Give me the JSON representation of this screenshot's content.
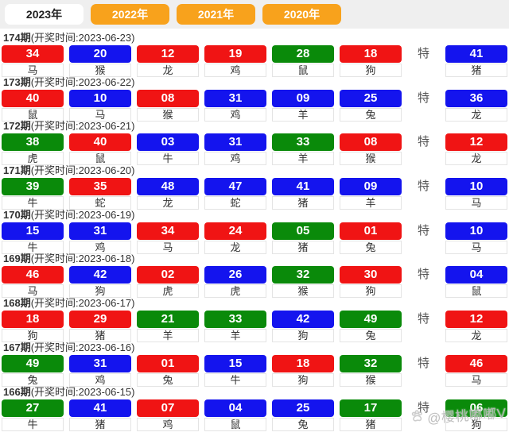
{
  "tab_bar": {
    "tabs": [
      {
        "label": "2023年",
        "active": true
      },
      {
        "label": "2022年",
        "active": false
      },
      {
        "label": "2021年",
        "active": false
      },
      {
        "label": "2020年",
        "active": false
      }
    ]
  },
  "special_marker": "特",
  "colors": {
    "red": "#f01414",
    "blue": "#1414ee",
    "green": "#0a8a0a",
    "orange": "#f8a21c"
  },
  "draws": [
    {
      "period": "174期",
      "time": "(开奖时间:2023-06-23)",
      "numbers": [
        {
          "value": "34",
          "color": "red",
          "zodiac": "马"
        },
        {
          "value": "20",
          "color": "blue",
          "zodiac": "猴"
        },
        {
          "value": "12",
          "color": "red",
          "zodiac": "龙"
        },
        {
          "value": "19",
          "color": "red",
          "zodiac": "鸡"
        },
        {
          "value": "28",
          "color": "green",
          "zodiac": "鼠"
        },
        {
          "value": "18",
          "color": "red",
          "zodiac": "狗"
        }
      ],
      "special": {
        "value": "41",
        "color": "blue",
        "zodiac": "猪"
      }
    },
    {
      "period": "173期",
      "time": "(开奖时间:2023-06-22)",
      "numbers": [
        {
          "value": "40",
          "color": "red",
          "zodiac": "鼠"
        },
        {
          "value": "10",
          "color": "blue",
          "zodiac": "马"
        },
        {
          "value": "08",
          "color": "red",
          "zodiac": "猴"
        },
        {
          "value": "31",
          "color": "blue",
          "zodiac": "鸡"
        },
        {
          "value": "09",
          "color": "blue",
          "zodiac": "羊"
        },
        {
          "value": "25",
          "color": "blue",
          "zodiac": "兔"
        }
      ],
      "special": {
        "value": "36",
        "color": "blue",
        "zodiac": "龙"
      }
    },
    {
      "period": "172期",
      "time": "(开奖时间:2023-06-21)",
      "numbers": [
        {
          "value": "38",
          "color": "green",
          "zodiac": "虎"
        },
        {
          "value": "40",
          "color": "red",
          "zodiac": "鼠"
        },
        {
          "value": "03",
          "color": "blue",
          "zodiac": "牛"
        },
        {
          "value": "31",
          "color": "blue",
          "zodiac": "鸡"
        },
        {
          "value": "33",
          "color": "green",
          "zodiac": "羊"
        },
        {
          "value": "08",
          "color": "red",
          "zodiac": "猴"
        }
      ],
      "special": {
        "value": "12",
        "color": "red",
        "zodiac": "龙"
      }
    },
    {
      "period": "171期",
      "time": "(开奖时间:2023-06-20)",
      "numbers": [
        {
          "value": "39",
          "color": "green",
          "zodiac": "牛"
        },
        {
          "value": "35",
          "color": "red",
          "zodiac": "蛇"
        },
        {
          "value": "48",
          "color": "blue",
          "zodiac": "龙"
        },
        {
          "value": "47",
          "color": "blue",
          "zodiac": "蛇"
        },
        {
          "value": "41",
          "color": "blue",
          "zodiac": "猪"
        },
        {
          "value": "09",
          "color": "blue",
          "zodiac": "羊"
        }
      ],
      "special": {
        "value": "10",
        "color": "blue",
        "zodiac": "马"
      }
    },
    {
      "period": "170期",
      "time": "(开奖时间:2023-06-19)",
      "numbers": [
        {
          "value": "15",
          "color": "blue",
          "zodiac": "牛"
        },
        {
          "value": "31",
          "color": "blue",
          "zodiac": "鸡"
        },
        {
          "value": "34",
          "color": "red",
          "zodiac": "马"
        },
        {
          "value": "24",
          "color": "red",
          "zodiac": "龙"
        },
        {
          "value": "05",
          "color": "green",
          "zodiac": "猪"
        },
        {
          "value": "01",
          "color": "red",
          "zodiac": "兔"
        }
      ],
      "special": {
        "value": "10",
        "color": "blue",
        "zodiac": "马"
      }
    },
    {
      "period": "169期",
      "time": "(开奖时间:2023-06-18)",
      "numbers": [
        {
          "value": "46",
          "color": "red",
          "zodiac": "马"
        },
        {
          "value": "42",
          "color": "blue",
          "zodiac": "狗"
        },
        {
          "value": "02",
          "color": "red",
          "zodiac": "虎"
        },
        {
          "value": "26",
          "color": "blue",
          "zodiac": "虎"
        },
        {
          "value": "32",
          "color": "green",
          "zodiac": "猴"
        },
        {
          "value": "30",
          "color": "red",
          "zodiac": "狗"
        }
      ],
      "special": {
        "value": "04",
        "color": "blue",
        "zodiac": "鼠"
      }
    },
    {
      "period": "168期",
      "time": "(开奖时间:2023-06-17)",
      "numbers": [
        {
          "value": "18",
          "color": "red",
          "zodiac": "狗"
        },
        {
          "value": "29",
          "color": "red",
          "zodiac": "猪"
        },
        {
          "value": "21",
          "color": "green",
          "zodiac": "羊"
        },
        {
          "value": "33",
          "color": "green",
          "zodiac": "羊"
        },
        {
          "value": "42",
          "color": "blue",
          "zodiac": "狗"
        },
        {
          "value": "49",
          "color": "green",
          "zodiac": "兔"
        }
      ],
      "special": {
        "value": "12",
        "color": "red",
        "zodiac": "龙"
      }
    },
    {
      "period": "167期",
      "time": "(开奖时间:2023-06-16)",
      "numbers": [
        {
          "value": "49",
          "color": "green",
          "zodiac": "兔"
        },
        {
          "value": "31",
          "color": "blue",
          "zodiac": "鸡"
        },
        {
          "value": "01",
          "color": "red",
          "zodiac": "兔"
        },
        {
          "value": "15",
          "color": "blue",
          "zodiac": "牛"
        },
        {
          "value": "18",
          "color": "red",
          "zodiac": "狗"
        },
        {
          "value": "32",
          "color": "green",
          "zodiac": "猴"
        }
      ],
      "special": {
        "value": "46",
        "color": "red",
        "zodiac": "马"
      }
    },
    {
      "period": "166期",
      "time": "(开奖时间:2023-06-15)",
      "numbers": [
        {
          "value": "27",
          "color": "green",
          "zodiac": "牛"
        },
        {
          "value": "41",
          "color": "blue",
          "zodiac": "猪"
        },
        {
          "value": "07",
          "color": "red",
          "zodiac": "鸡"
        },
        {
          "value": "04",
          "color": "blue",
          "zodiac": "鼠"
        },
        {
          "value": "25",
          "color": "blue",
          "zodiac": "兔"
        },
        {
          "value": "17",
          "color": "green",
          "zodiac": "猪"
        }
      ],
      "special": {
        "value": "06",
        "color": "green",
        "zodiac": "狗"
      }
    }
  ],
  "watermark": {
    "icon": "paw-icon",
    "text": "@樱桃嘟嘟V"
  }
}
